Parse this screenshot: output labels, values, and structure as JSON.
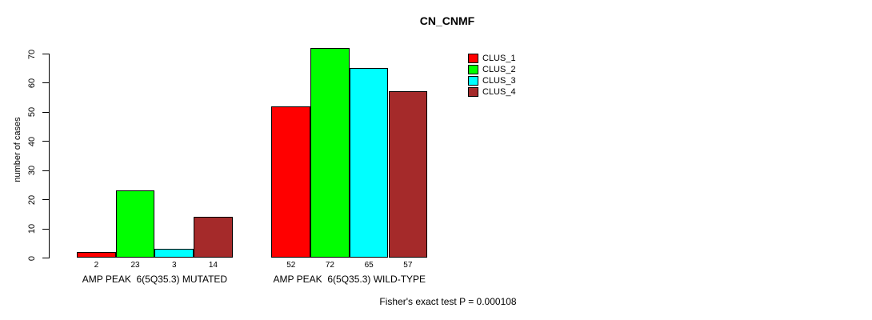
{
  "chart_data": {
    "type": "bar",
    "title": "CN_CNMF",
    "ylabel": "number of cases",
    "ylim": [
      0,
      70
    ],
    "yticks": [
      0,
      10,
      20,
      30,
      40,
      50,
      60,
      70
    ],
    "grid": false,
    "legend_position": "top-right",
    "categories": [
      "AMP PEAK  6(5Q35.3) MUTATED",
      "AMP PEAK  6(5Q35.3) WILD-TYPE"
    ],
    "series": [
      {
        "name": "CLUS_1",
        "color": "#FF0000",
        "values": [
          2,
          52
        ]
      },
      {
        "name": "CLUS_2",
        "color": "#00FF00",
        "values": [
          23,
          72
        ]
      },
      {
        "name": "CLUS_3",
        "color": "#00FFFF",
        "values": [
          3,
          65
        ]
      },
      {
        "name": "CLUS_4",
        "color": "#A52A2A",
        "values": [
          14,
          57
        ]
      }
    ],
    "bar_value_labels": [
      [
        2,
        23,
        3,
        14
      ],
      [
        52,
        72,
        65,
        57
      ]
    ],
    "footnote": "Fisher's exact test P = 0.000108"
  }
}
